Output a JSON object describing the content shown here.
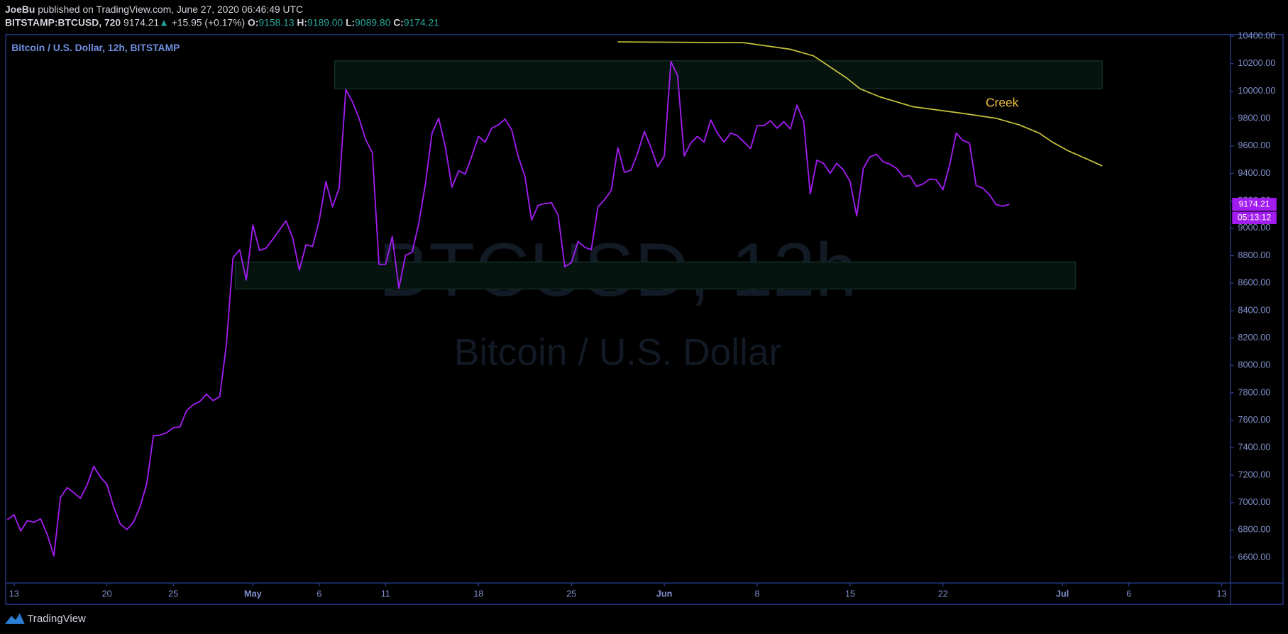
{
  "header": {
    "author": "JoeBu",
    "published": "published on TradingView.com, June 27, 2020 06:46:49 UTC",
    "symbol": "BITSTAMP:BTCUSD, 720",
    "last": "9174.21",
    "change_arrow": "▲",
    "change": "+15.95 (+0.17%)",
    "open_label": "O:",
    "open": "9158.13",
    "high_label": "H:",
    "high": "9189.00",
    "low_label": "L:",
    "low": "9089.80",
    "close_label": "C:",
    "close": "9174.21"
  },
  "chart_data": {
    "type": "line",
    "watermark": "BTCUSD, 12h",
    "watermark_subtitle": "Bitcoin / U.S. Dollar",
    "countdown": "05:13:12",
    "xlim": [
      "04-12T09:00",
      "07-13T16:00"
    ],
    "xticks": [
      {
        "value": "04-13T00:00",
        "label": "13"
      },
      {
        "value": "04-20T00:00",
        "label": "20"
      },
      {
        "value": "04-25T00:00",
        "label": "25"
      },
      {
        "value": "05-01T00:00",
        "label": "May"
      },
      {
        "value": "05-06T00:00",
        "label": "6"
      },
      {
        "value": "05-11T00:00",
        "label": "11"
      },
      {
        "value": "05-18T00:00",
        "label": "18"
      },
      {
        "value": "05-25T00:00",
        "label": "25"
      },
      {
        "value": "06-01T00:00",
        "label": "Jun"
      },
      {
        "value": "06-08T00:00",
        "label": "8"
      },
      {
        "value": "06-15T00:00",
        "label": "15"
      },
      {
        "value": "06-22T00:00",
        "label": "22"
      },
      {
        "value": "07-01T00:00",
        "label": "Jul"
      },
      {
        "value": "07-06T00:00",
        "label": "6"
      },
      {
        "value": "07-13T00:00",
        "label": "13"
      }
    ],
    "ylim": [
      6414,
      10412
    ],
    "yticks": [
      {
        "value": 6600,
        "label": "6600.00"
      },
      {
        "value": 6800,
        "label": "6800.00"
      },
      {
        "value": 7000,
        "label": "7000.00"
      },
      {
        "value": 7200,
        "label": "7200.00"
      },
      {
        "value": 7400,
        "label": "7400.00"
      },
      {
        "value": 7600,
        "label": "7600.00"
      },
      {
        "value": 7800,
        "label": "7800.00"
      },
      {
        "value": 8000,
        "label": "8000.00"
      },
      {
        "value": 8200,
        "label": "8200.00"
      },
      {
        "value": 8400,
        "label": "8400.00"
      },
      {
        "value": 8600,
        "label": "8600.00"
      },
      {
        "value": 8800,
        "label": "8800.00"
      },
      {
        "value": 9000,
        "label": "9000.00"
      },
      {
        "value": 9200,
        "label": "9200.00"
      },
      {
        "value": 9400,
        "label": "9400.00"
      },
      {
        "value": 9600,
        "label": "9600.00"
      },
      {
        "value": 9800,
        "label": "9800.00"
      },
      {
        "value": 10000,
        "label": "10000.00"
      },
      {
        "value": 10200,
        "label": "10200.00"
      },
      {
        "value": 10400,
        "label": "10400.00"
      }
    ],
    "grid": false,
    "zones": [
      {
        "x": [
          "05-07T04:00",
          "07-04T00:00"
        ],
        "y": [
          10017,
          10221
        ],
        "color": "#06140f"
      },
      {
        "x": [
          "04-29T16:00",
          "07-02T00:00"
        ],
        "y": [
          8557,
          8755
        ],
        "color": "#06140f"
      }
    ],
    "series": [
      {
        "name": "Bitcoin / U.S. Dollar, 12h, BITSTAMP",
        "color": "#a21cf0",
        "x": [
          "04-12T12:00",
          "04-13T00:00",
          "04-13T12:00",
          "04-14T00:00",
          "04-14T12:00",
          "04-15T00:00",
          "04-15T12:00",
          "04-16T00:00",
          "04-16T12:00",
          "04-17T00:00",
          "04-17T12:00",
          "04-18T00:00",
          "04-18T12:00",
          "04-19T00:00",
          "04-19T12:00",
          "04-20T00:00",
          "04-20T12:00",
          "04-21T00:00",
          "04-21T12:00",
          "04-22T00:00",
          "04-22T12:00",
          "04-23T00:00",
          "04-23T12:00",
          "04-24T00:00",
          "04-24T12:00",
          "04-25T00:00",
          "04-25T12:00",
          "04-26T00:00",
          "04-26T12:00",
          "04-27T00:00",
          "04-27T12:00",
          "04-28T00:00",
          "04-28T12:00",
          "04-29T00:00",
          "04-29T12:00",
          "04-30T00:00",
          "04-30T12:00",
          "05-01T00:00",
          "05-01T12:00",
          "05-02T00:00",
          "05-02T12:00",
          "05-03T00:00",
          "05-03T12:00",
          "05-04T00:00",
          "05-04T12:00",
          "05-05T00:00",
          "05-05T12:00",
          "05-06T00:00",
          "05-06T12:00",
          "05-07T00:00",
          "05-07T12:00",
          "05-08T00:00",
          "05-08T12:00",
          "05-09T00:00",
          "05-09T12:00",
          "05-10T00:00",
          "05-10T12:00",
          "05-11T00:00",
          "05-11T12:00",
          "05-12T00:00",
          "05-12T12:00",
          "05-13T00:00",
          "05-13T12:00",
          "05-14T00:00",
          "05-14T12:00",
          "05-15T00:00",
          "05-15T12:00",
          "05-16T00:00",
          "05-16T12:00",
          "05-17T00:00",
          "05-17T12:00",
          "05-18T00:00",
          "05-18T12:00",
          "05-19T00:00",
          "05-19T12:00",
          "05-20T00:00",
          "05-20T12:00",
          "05-21T00:00",
          "05-21T12:00",
          "05-22T00:00",
          "05-22T12:00",
          "05-23T00:00",
          "05-23T12:00",
          "05-24T00:00",
          "05-24T12:00",
          "05-25T00:00",
          "05-25T12:00",
          "05-26T00:00",
          "05-26T12:00",
          "05-27T00:00",
          "05-27T12:00",
          "05-28T00:00",
          "05-28T12:00",
          "05-29T00:00",
          "05-29T12:00",
          "05-30T00:00",
          "05-30T12:00",
          "05-31T00:00",
          "05-31T12:00",
          "06-01T00:00",
          "06-01T12:00",
          "06-02T00:00",
          "06-02T12:00",
          "06-03T00:00",
          "06-03T12:00",
          "06-04T00:00",
          "06-04T12:00",
          "06-05T00:00",
          "06-05T12:00",
          "06-06T00:00",
          "06-06T12:00",
          "06-07T00:00",
          "06-07T12:00",
          "06-08T00:00",
          "06-08T12:00",
          "06-09T00:00",
          "06-09T12:00",
          "06-10T00:00",
          "06-10T12:00",
          "06-11T00:00",
          "06-11T12:00",
          "06-12T00:00",
          "06-12T12:00",
          "06-13T00:00",
          "06-13T12:00",
          "06-14T00:00",
          "06-14T12:00",
          "06-15T00:00",
          "06-15T12:00",
          "06-16T00:00",
          "06-16T12:00",
          "06-17T00:00",
          "06-17T12:00",
          "06-18T00:00",
          "06-18T12:00",
          "06-19T00:00",
          "06-19T12:00",
          "06-20T00:00",
          "06-20T12:00",
          "06-21T00:00",
          "06-21T12:00",
          "06-22T00:00",
          "06-22T12:00",
          "06-23T00:00",
          "06-23T12:00",
          "06-24T00:00",
          "06-24T12:00",
          "06-25T00:00",
          "06-25T12:00",
          "06-26T00:00",
          "06-26T12:00",
          "06-27T00:00"
        ],
        "values": [
          6875,
          6911,
          6792,
          6869,
          6857,
          6881,
          6768,
          6612,
          7037,
          7109,
          7073,
          7031,
          7127,
          7264,
          7187,
          7133,
          6971,
          6845,
          6803,
          6857,
          6971,
          7139,
          7486,
          7492,
          7510,
          7546,
          7552,
          7671,
          7713,
          7737,
          7791,
          7743,
          7773,
          8150,
          8785,
          8844,
          8623,
          9024,
          8838,
          8856,
          8920,
          8988,
          9054,
          8928,
          8695,
          8880,
          8868,
          9060,
          9341,
          9156,
          9293,
          10011,
          9922,
          9802,
          9646,
          9551,
          8737,
          8737,
          8940,
          8563,
          8802,
          8826,
          9036,
          9323,
          9694,
          9802,
          9593,
          9299,
          9419,
          9395,
          9527,
          9670,
          9628,
          9730,
          9754,
          9796,
          9718,
          9521,
          9377,
          9060,
          9168,
          9180,
          9186,
          9096,
          8719,
          8749,
          8904,
          8862,
          8844,
          9156,
          9209,
          9275,
          9587,
          9407,
          9425,
          9551,
          9706,
          9587,
          9449,
          9527,
          10215,
          10113,
          9527,
          9622,
          9670,
          9628,
          9790,
          9694,
          9628,
          9694,
          9676,
          9630,
          9581,
          9748,
          9748,
          9784,
          9730,
          9778,
          9724,
          9898,
          9778,
          9251,
          9497,
          9473,
          9401,
          9473,
          9425,
          9341,
          9090,
          9437,
          9521,
          9539,
          9485,
          9467,
          9437,
          9377,
          9383,
          9305,
          9323,
          9359,
          9353,
          9281,
          9461,
          9694,
          9640,
          9622,
          9311,
          9293,
          9245,
          9173,
          9161,
          9174.21
        ]
      },
      {
        "name": "Creek",
        "color": "#c9c43a",
        "x": [
          "05-28T12:00",
          "06-07T00:00",
          "06-10T12:00",
          "06-12T06:00",
          "06-14T18:00",
          "06-15T18:00",
          "06-17T06:00",
          "06-19T18:00",
          "06-23T12:00",
          "06-26T00:00",
          "06-27T18:00",
          "06-29T06:00",
          "06-30T06:00",
          "07-01T12:00",
          "07-02T18:00",
          "07-04T00:00"
        ],
        "values": [
          10359,
          10353,
          10305,
          10257,
          10095,
          10017,
          9958,
          9886,
          9838,
          9802,
          9754,
          9694,
          9628,
          9562,
          9509,
          9455
        ]
      }
    ],
    "footer": "TradingView"
  }
}
